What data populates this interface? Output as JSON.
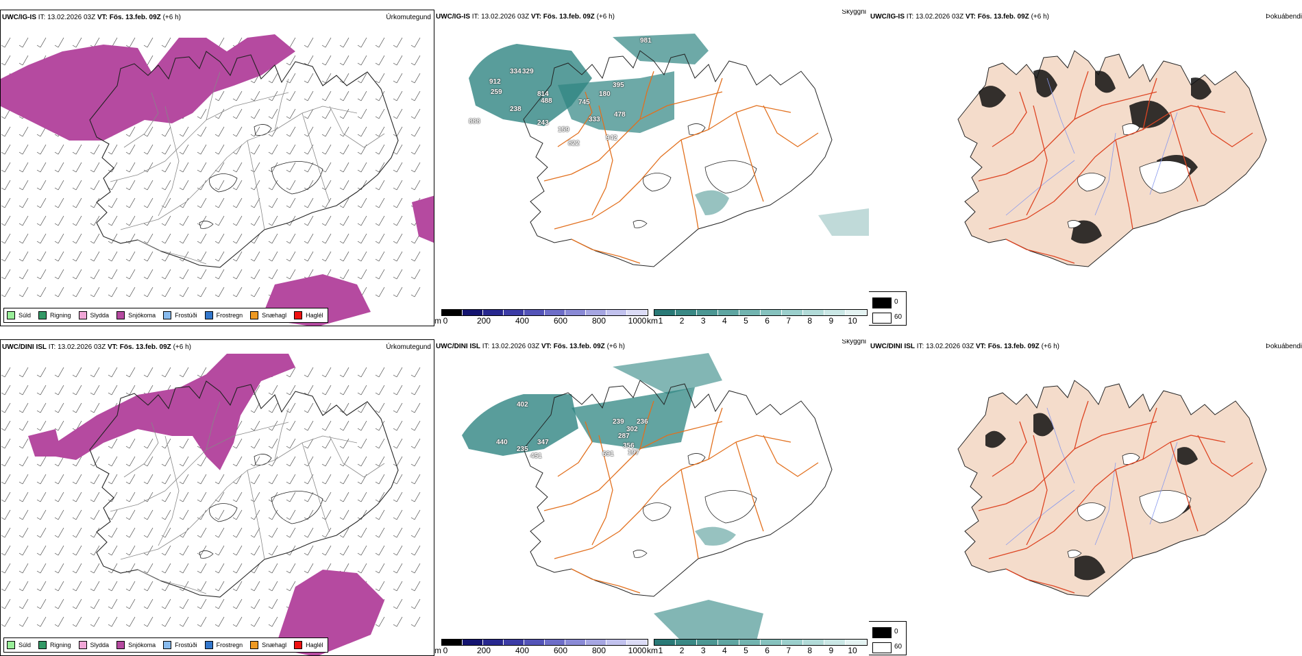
{
  "rows": [
    {
      "model": "UWC/IG-IS",
      "it_label": "IT:",
      "it_value": "13.02.2026 03Z",
      "vt_label": "VT:",
      "vt_value": "Fös. 13.feb. 09Z",
      "lead": "(+6 h)",
      "precip_name": "Úrkomutegund",
      "vis_name": "Skyggni",
      "fog_name": "Þokuábendi",
      "vis_labels": [
        "981",
        "912",
        "334",
        "329",
        "259",
        "238",
        "888",
        "814",
        "488",
        "243",
        "745",
        "180",
        "395",
        "478",
        "333",
        "159",
        "822",
        "942"
      ]
    },
    {
      "model": "UWC/DINI ISL",
      "it_label": "IT:",
      "it_value": "13.02.2026 03Z",
      "vt_label": "VT:",
      "vt_value": "Fös. 13.feb. 09Z",
      "lead": "(+6 h)",
      "precip_name": "Úrkomutegund",
      "vis_name": "Skyggni",
      "fog_name": "Þokuábendi",
      "vis_labels": [
        "402",
        "440",
        "347",
        "235",
        "451",
        "239",
        "236",
        "302",
        "287",
        "356",
        "691",
        "197"
      ]
    }
  ],
  "precip_legend": [
    {
      "label": "Súld",
      "color": "#99ee99"
    },
    {
      "label": "Rigning",
      "color": "#339966"
    },
    {
      "label": "Slydda",
      "color": "#f0a6d6"
    },
    {
      "label": "Snjókoma",
      "color": "#b54aa0"
    },
    {
      "label": "Frostúði",
      "color": "#88bbee"
    },
    {
      "label": "Frostregn",
      "color": "#3377cc"
    },
    {
      "label": "Snæhagl",
      "color": "#ee9922"
    },
    {
      "label": "Haglél",
      "color": "#ee1111"
    }
  ],
  "ceiling_bar": {
    "unit": "m",
    "ticks": [
      "0",
      "200",
      "400",
      "600",
      "800",
      "1000"
    ],
    "colors": [
      "#000000",
      "#141470",
      "#28288f",
      "#3c3ca6",
      "#5454b8",
      "#6e6ec8",
      "#8a8ad6",
      "#a6a6e2",
      "#c2c2ee",
      "#dcdcf6"
    ]
  },
  "vis_bar": {
    "unit": "km",
    "ticks": [
      "1",
      "2",
      "3",
      "4",
      "5",
      "6",
      "7",
      "8",
      "9",
      "10"
    ],
    "colors": [
      "#2a7a77",
      "#3a8985",
      "#4c9793",
      "#5fa6a2",
      "#72b4b0",
      "#86c2be",
      "#9bcfcc",
      "#b2dbd8",
      "#cae7e5",
      "#e4f3f2"
    ]
  },
  "fog_legend": [
    {
      "label": "0",
      "color": "#000000"
    },
    {
      "label": "60",
      "color": "#ffffff"
    }
  ],
  "colors": {
    "snow": "#b54aa0",
    "vis_teal": "#2f8582",
    "road_orange": "#e2701e",
    "fog_land": "#f4dccb",
    "fog_road": "#dd4422",
    "fog_river": "#8899ee"
  }
}
